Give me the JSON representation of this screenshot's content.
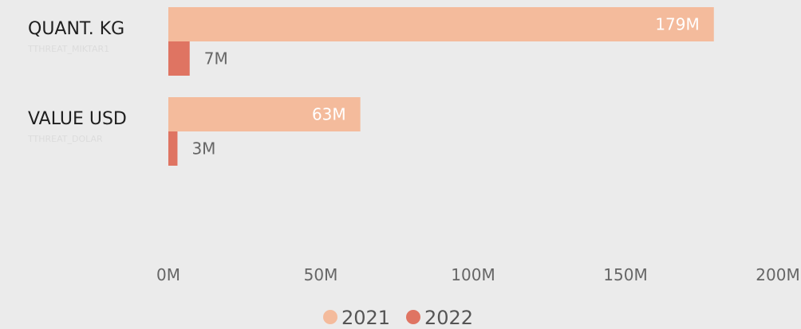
{
  "chart_data": {
    "type": "bar",
    "orientation": "horizontal",
    "categories": [
      "QUANT. KG",
      "VALUE USD"
    ],
    "category_sublabels": [
      "TTHREAT_MIKTAR1",
      "TTHREAT_DOLAR"
    ],
    "series": [
      {
        "name": "2021",
        "values": [
          179,
          63
        ],
        "labels": [
          "179M",
          "63M"
        ],
        "color": "#f4bb9c"
      },
      {
        "name": "2022",
        "values": [
          7,
          3
        ],
        "labels": [
          "7M",
          "3M"
        ],
        "color": "#df7462"
      }
    ],
    "x_ticks": [
      "0M",
      "50M",
      "100M",
      "150M",
      "200M"
    ],
    "xlim": [
      0,
      200
    ],
    "unit": "M",
    "grid": false,
    "legend_position": "bottom-center"
  }
}
